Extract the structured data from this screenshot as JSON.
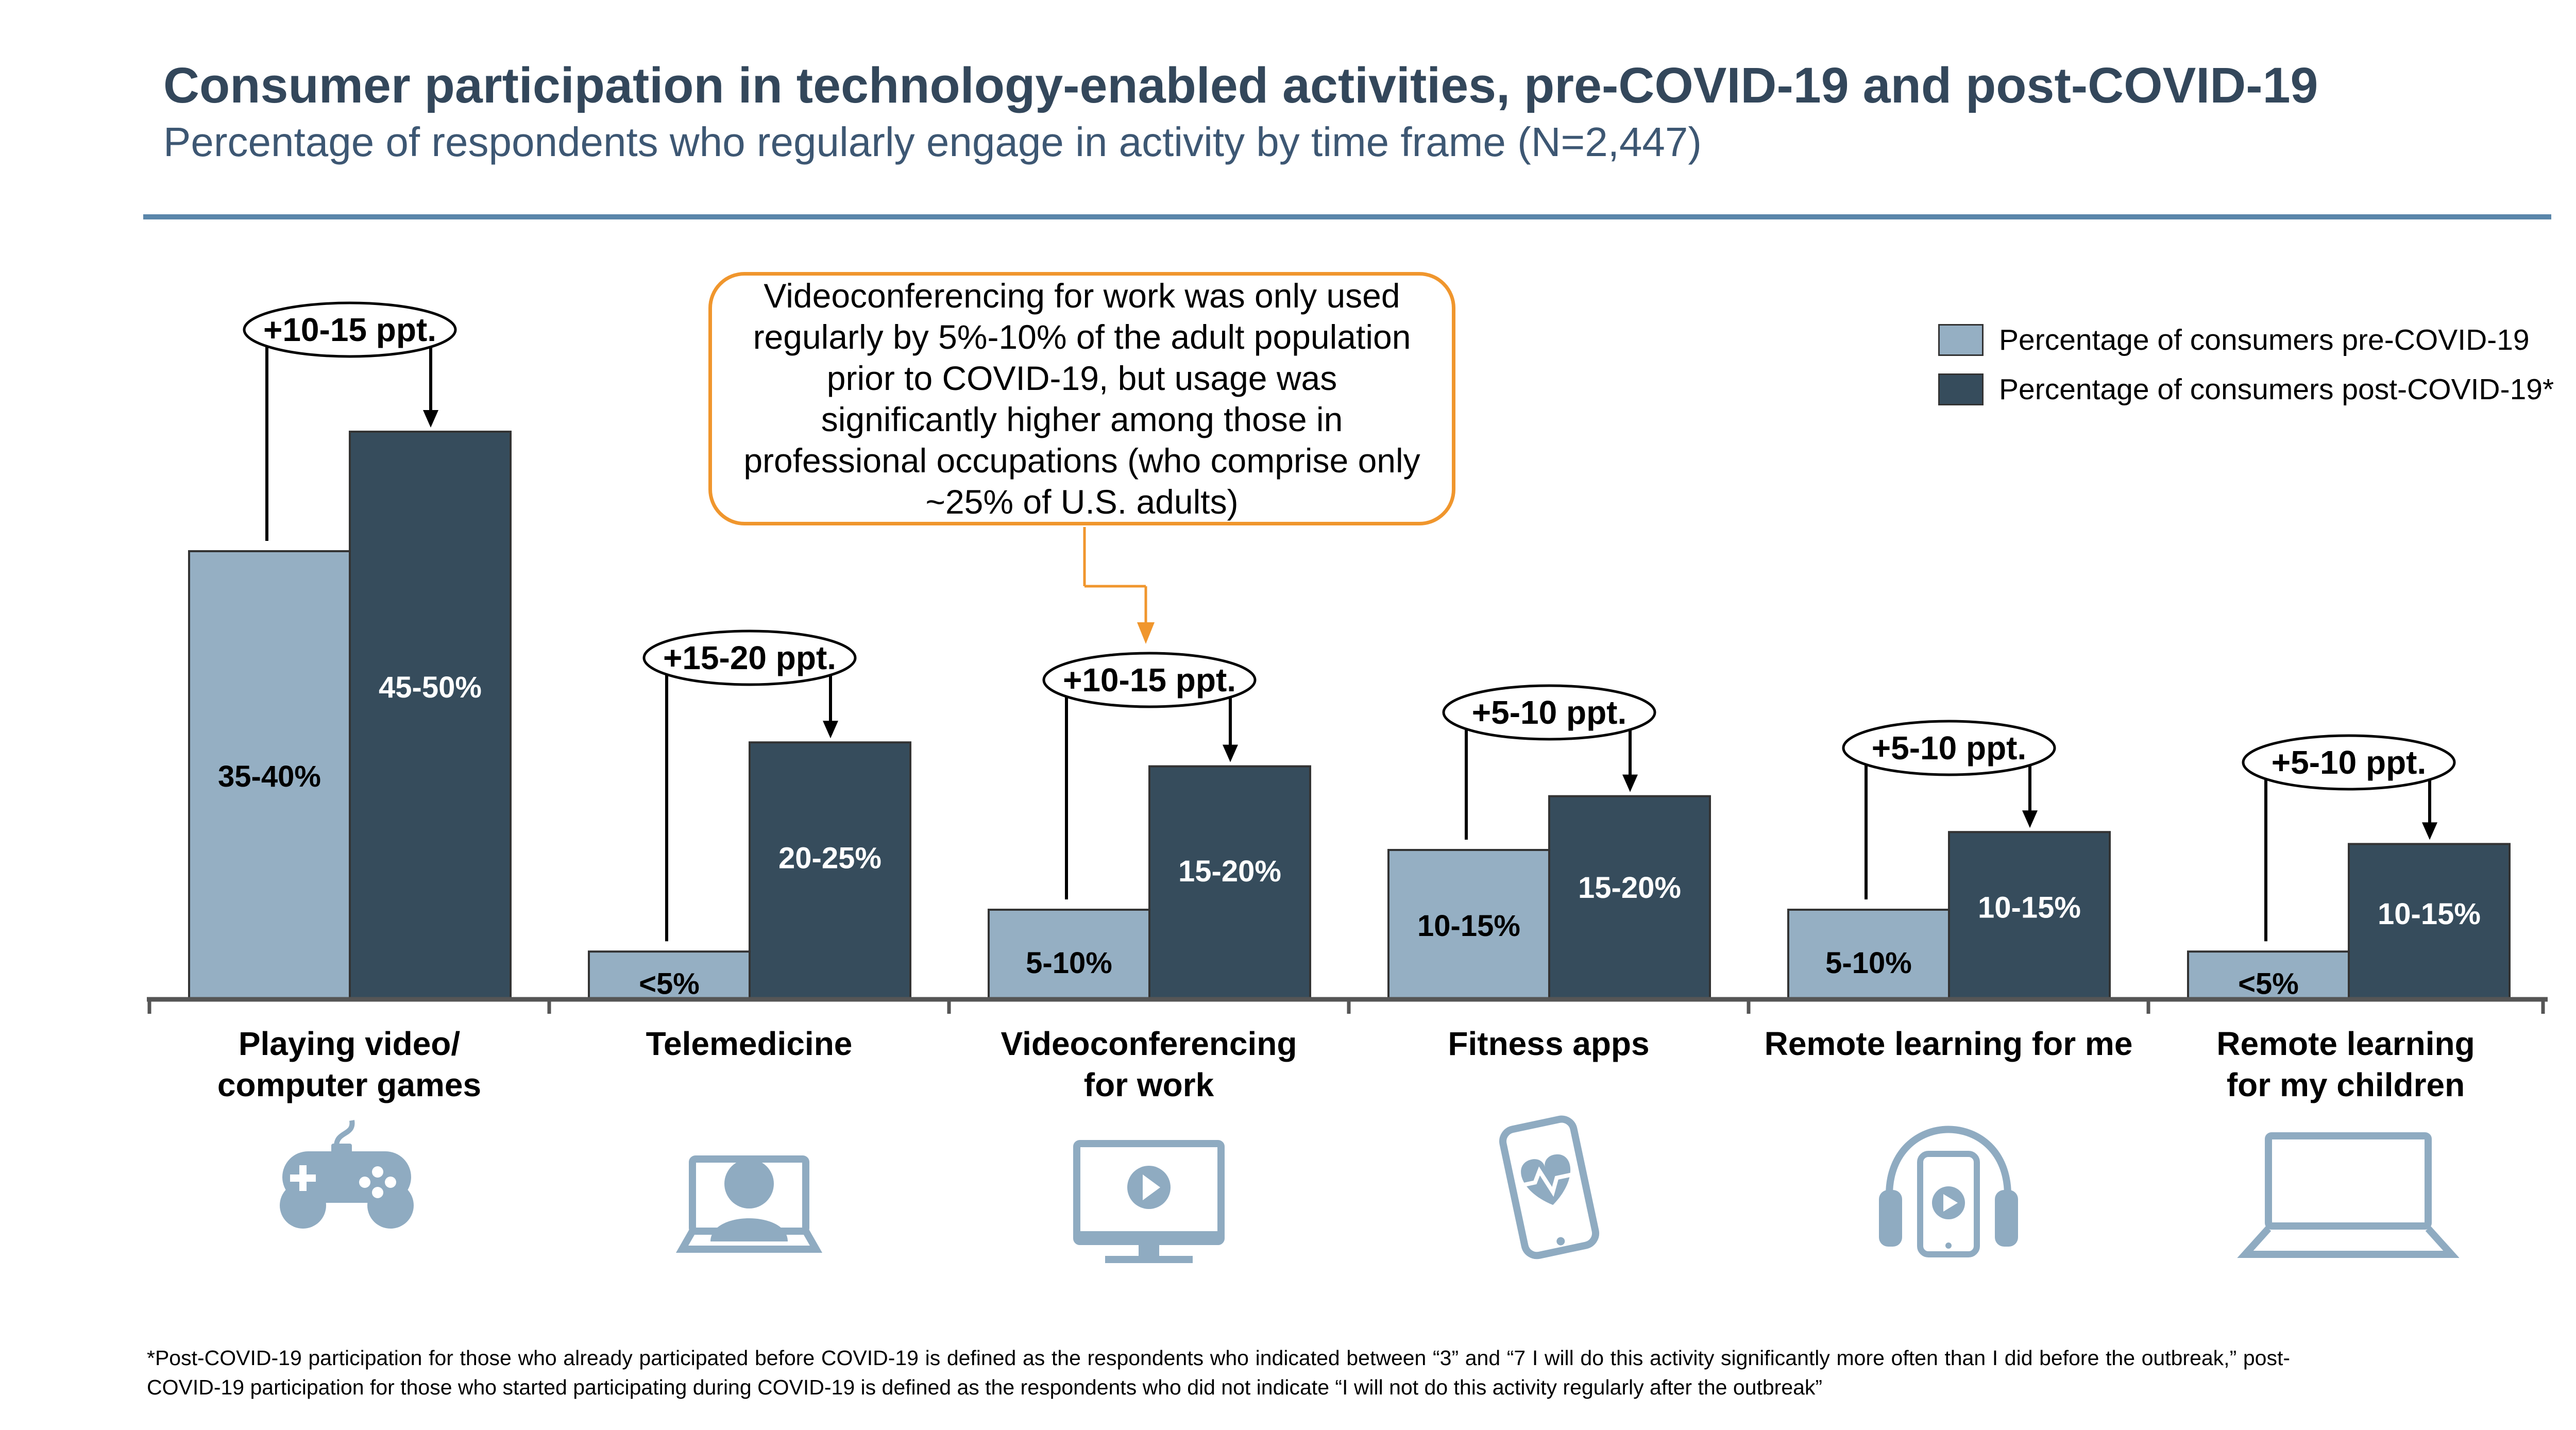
{
  "title": "Consumer participation in technology-enabled activities, pre-COVID-19 and post-COVID-19",
  "subtitle": "Percentage of respondents who regularly engage in activity by time frame (N=2,447)",
  "callout": "Videoconferencing for work was only used regularly by 5%-10% of the adult population prior to COVID-19, but usage was significantly higher among those in professional occupations (who comprise only ~25% of U.S. adults)",
  "footnote": "*Post-COVID-19 participation for those who already participated before COVID-19 is defined as the respondents who indicated between “3” and “7 I will do this activity significantly more often than I did before the outbreak,” post-COVID-19 participation for those who started participating during COVID-19 is defined as the respondents who did not indicate “I will not do this activity regularly after the outbreak”",
  "colors": {
    "pre": "#95afc3",
    "post": "#364c5c",
    "title": "#33475b",
    "rule": "#5a86aa",
    "callout_border": "#f0962d",
    "icon": "#8fabc1"
  },
  "chart_data": {
    "type": "bar",
    "title": "Consumer participation in technology-enabled activities, pre-COVID-19 and post-COVID-19",
    "subtitle": "Percentage of respondents who regularly engage in activity by time frame (N=2,447)",
    "categories": [
      [
        "Playing video/",
        "computer games"
      ],
      [
        "Telemedicine"
      ],
      [
        "Videoconferencing",
        "for work"
      ],
      [
        "Fitness apps"
      ],
      [
        "Remote learning for me"
      ],
      [
        "Remote learning",
        "for my children"
      ]
    ],
    "series": [
      {
        "name": "Percentage of consumers pre-COVID-19",
        "values": [
          37.5,
          4,
          7.5,
          12.5,
          7.5,
          4
        ],
        "labels": [
          "35-40%",
          "<5%",
          "5-10%",
          "10-15%",
          "5-10%",
          "<5%"
        ]
      },
      {
        "name": "Percentage of consumers post-COVID-19*",
        "values": [
          47.5,
          21.5,
          19.5,
          17,
          14,
          13
        ],
        "labels": [
          "45-50%",
          "20-25%",
          "15-20%",
          "15-20%",
          "10-15%",
          "10-15%"
        ]
      }
    ],
    "changes": [
      "+10-15 ppt.",
      "+15-20 ppt.",
      "+10-15 ppt.",
      "+5-10 ppt.",
      "+5-10 ppt.",
      "+5-10 ppt."
    ],
    "icons": [
      "gamepad-icon",
      "telemedicine-icon",
      "monitor-play-icon",
      "fitness-phone-icon",
      "headphones-phone-icon",
      "laptop-icon"
    ],
    "ylim": [
      0,
      50
    ],
    "grid": false,
    "legend": "top-right"
  }
}
